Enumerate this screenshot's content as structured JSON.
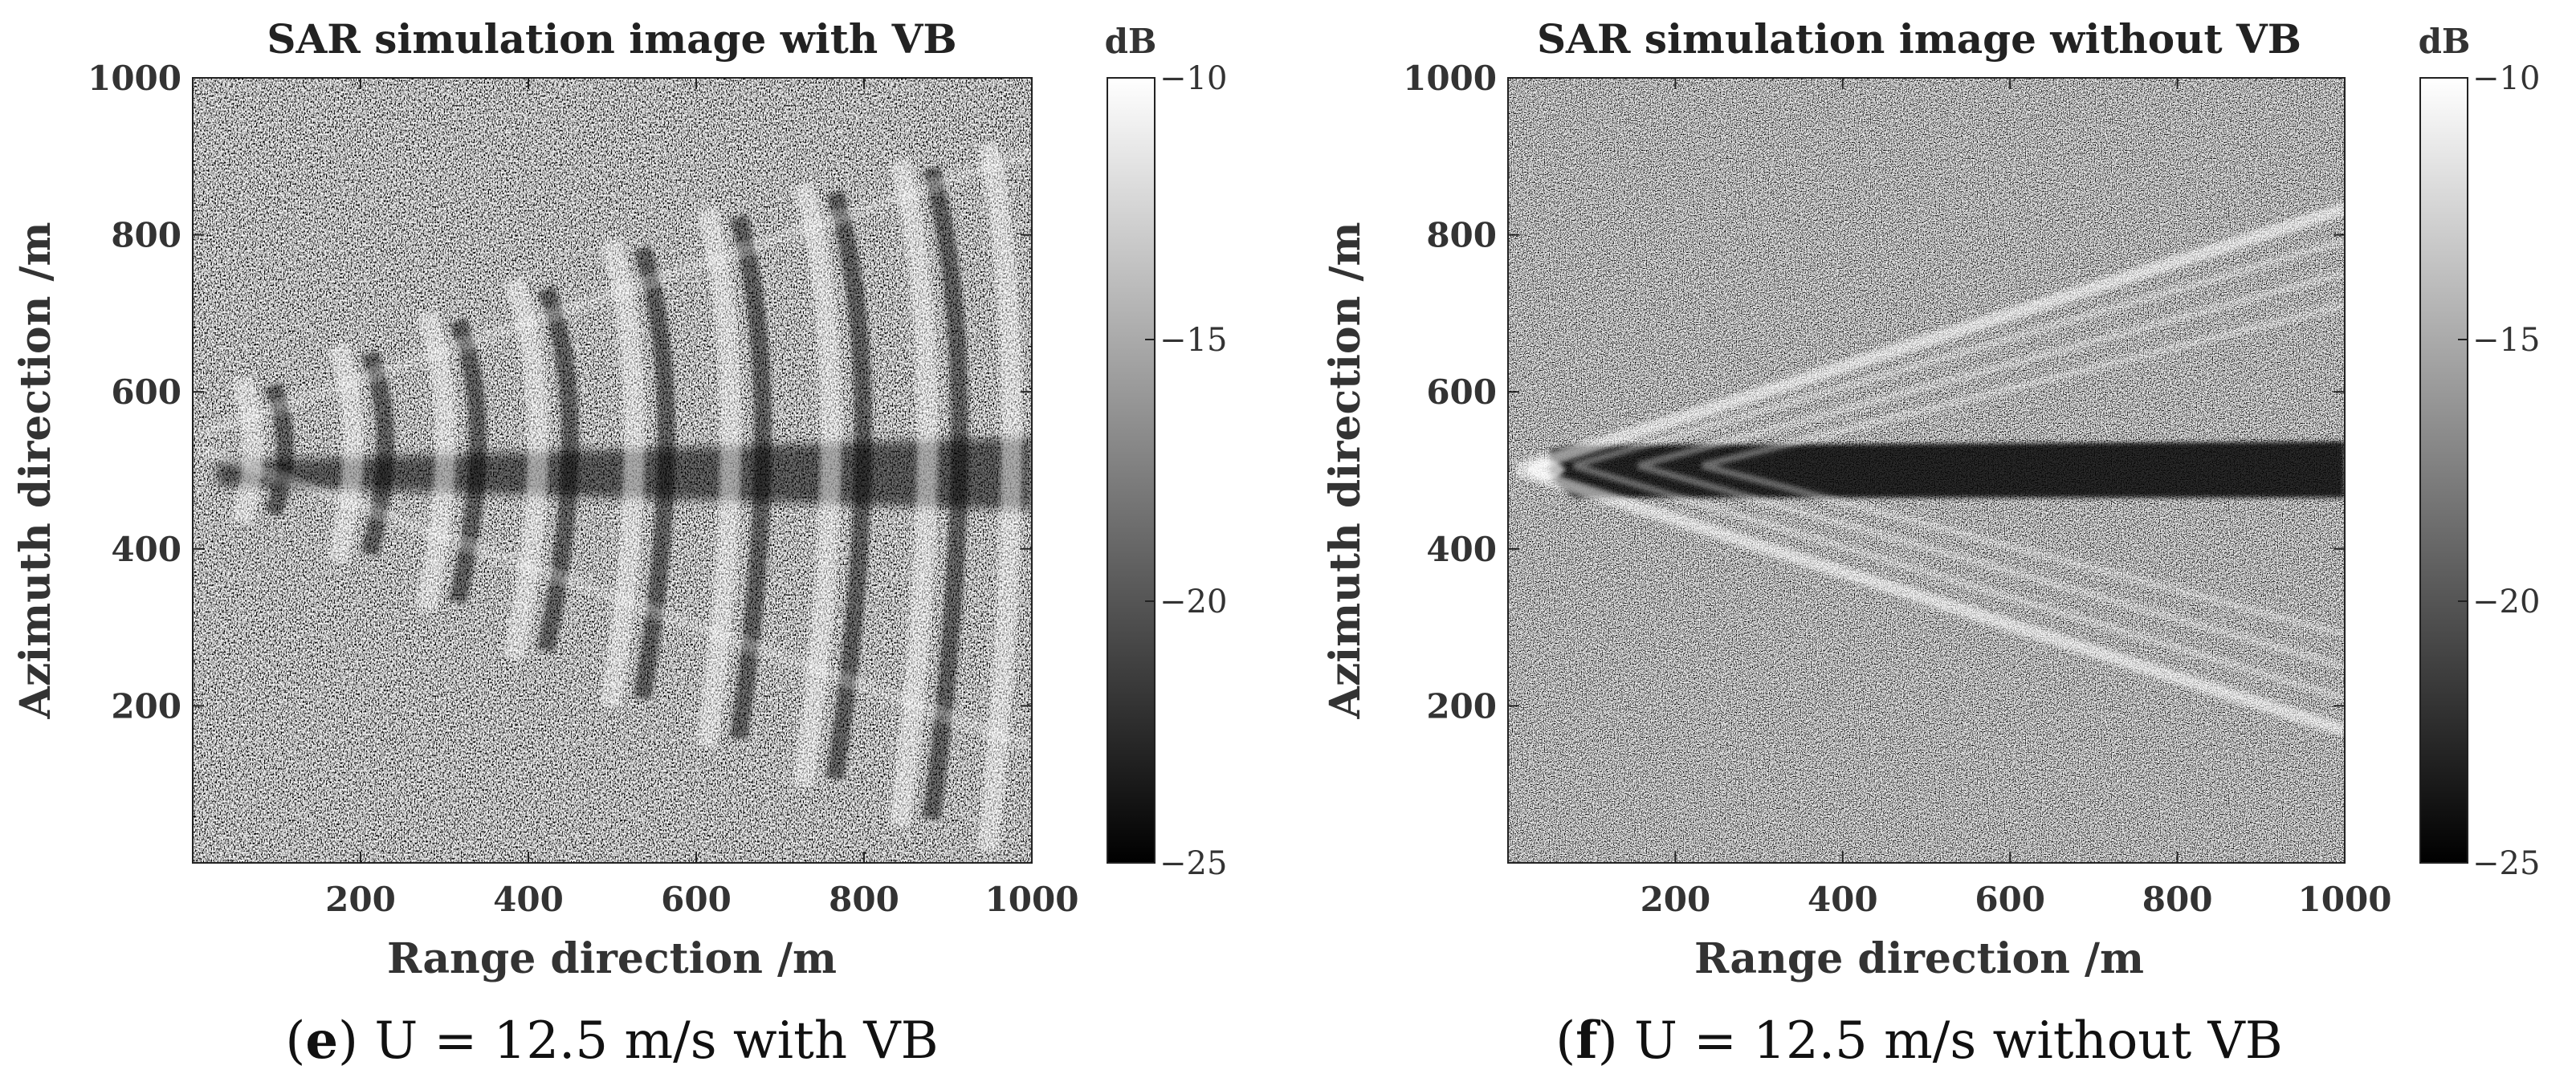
{
  "chart_data": [
    {
      "type": "heatmap",
      "panel_letter": "e",
      "caption_rest": ") U = 12.5 m/s with VB",
      "title": "SAR simulation image with VB",
      "xlabel": "Range direction /m",
      "ylabel": "Azimuth direction /m",
      "xlim": [
        0,
        1000
      ],
      "ylim": [
        0,
        1000
      ],
      "x_ticks": [
        "200",
        "400",
        "600",
        "800",
        "1000"
      ],
      "y_ticks": [
        "200",
        "400",
        "600",
        "800",
        "1000"
      ],
      "colorbar": {
        "unit": "dB",
        "range": [
          -25,
          -10
        ],
        "ticks": [
          "−10",
          "−15",
          "−20",
          "−25"
        ],
        "colormap": "gray"
      },
      "wake": {
        "origin": [
          0,
          520
        ],
        "kelvin_arm_ends": [
          [
            1000,
            900
          ],
          [
            1000,
            100
          ]
        ],
        "dark_band_azimuth": [
          470,
          560
        ],
        "style": "broad transverse waves, tilted wake"
      }
    },
    {
      "type": "heatmap",
      "panel_letter": "f",
      "caption_rest": ") U = 12.5 m/s without VB",
      "title": "SAR simulation image without VB",
      "xlabel": "Range direction /m",
      "ylabel": "Azimuth direction /m",
      "xlim": [
        0,
        1000
      ],
      "ylim": [
        0,
        1000
      ],
      "x_ticks": [
        "200",
        "400",
        "600",
        "800",
        "1000"
      ],
      "y_ticks": [
        "200",
        "400",
        "600",
        "800",
        "1000"
      ],
      "colorbar": {
        "unit": "dB",
        "range": [
          -25,
          -10
        ],
        "ticks": [
          "−10",
          "−15",
          "−20",
          "−25"
        ],
        "colormap": "gray"
      },
      "wake": {
        "origin": [
          0,
          500
        ],
        "kelvin_arm_ends": [
          [
            1000,
            860
          ],
          [
            1000,
            140
          ]
        ],
        "dark_band_azimuth": [
          460,
          530
        ],
        "style": "thin symmetric Kelvin arms"
      }
    }
  ]
}
